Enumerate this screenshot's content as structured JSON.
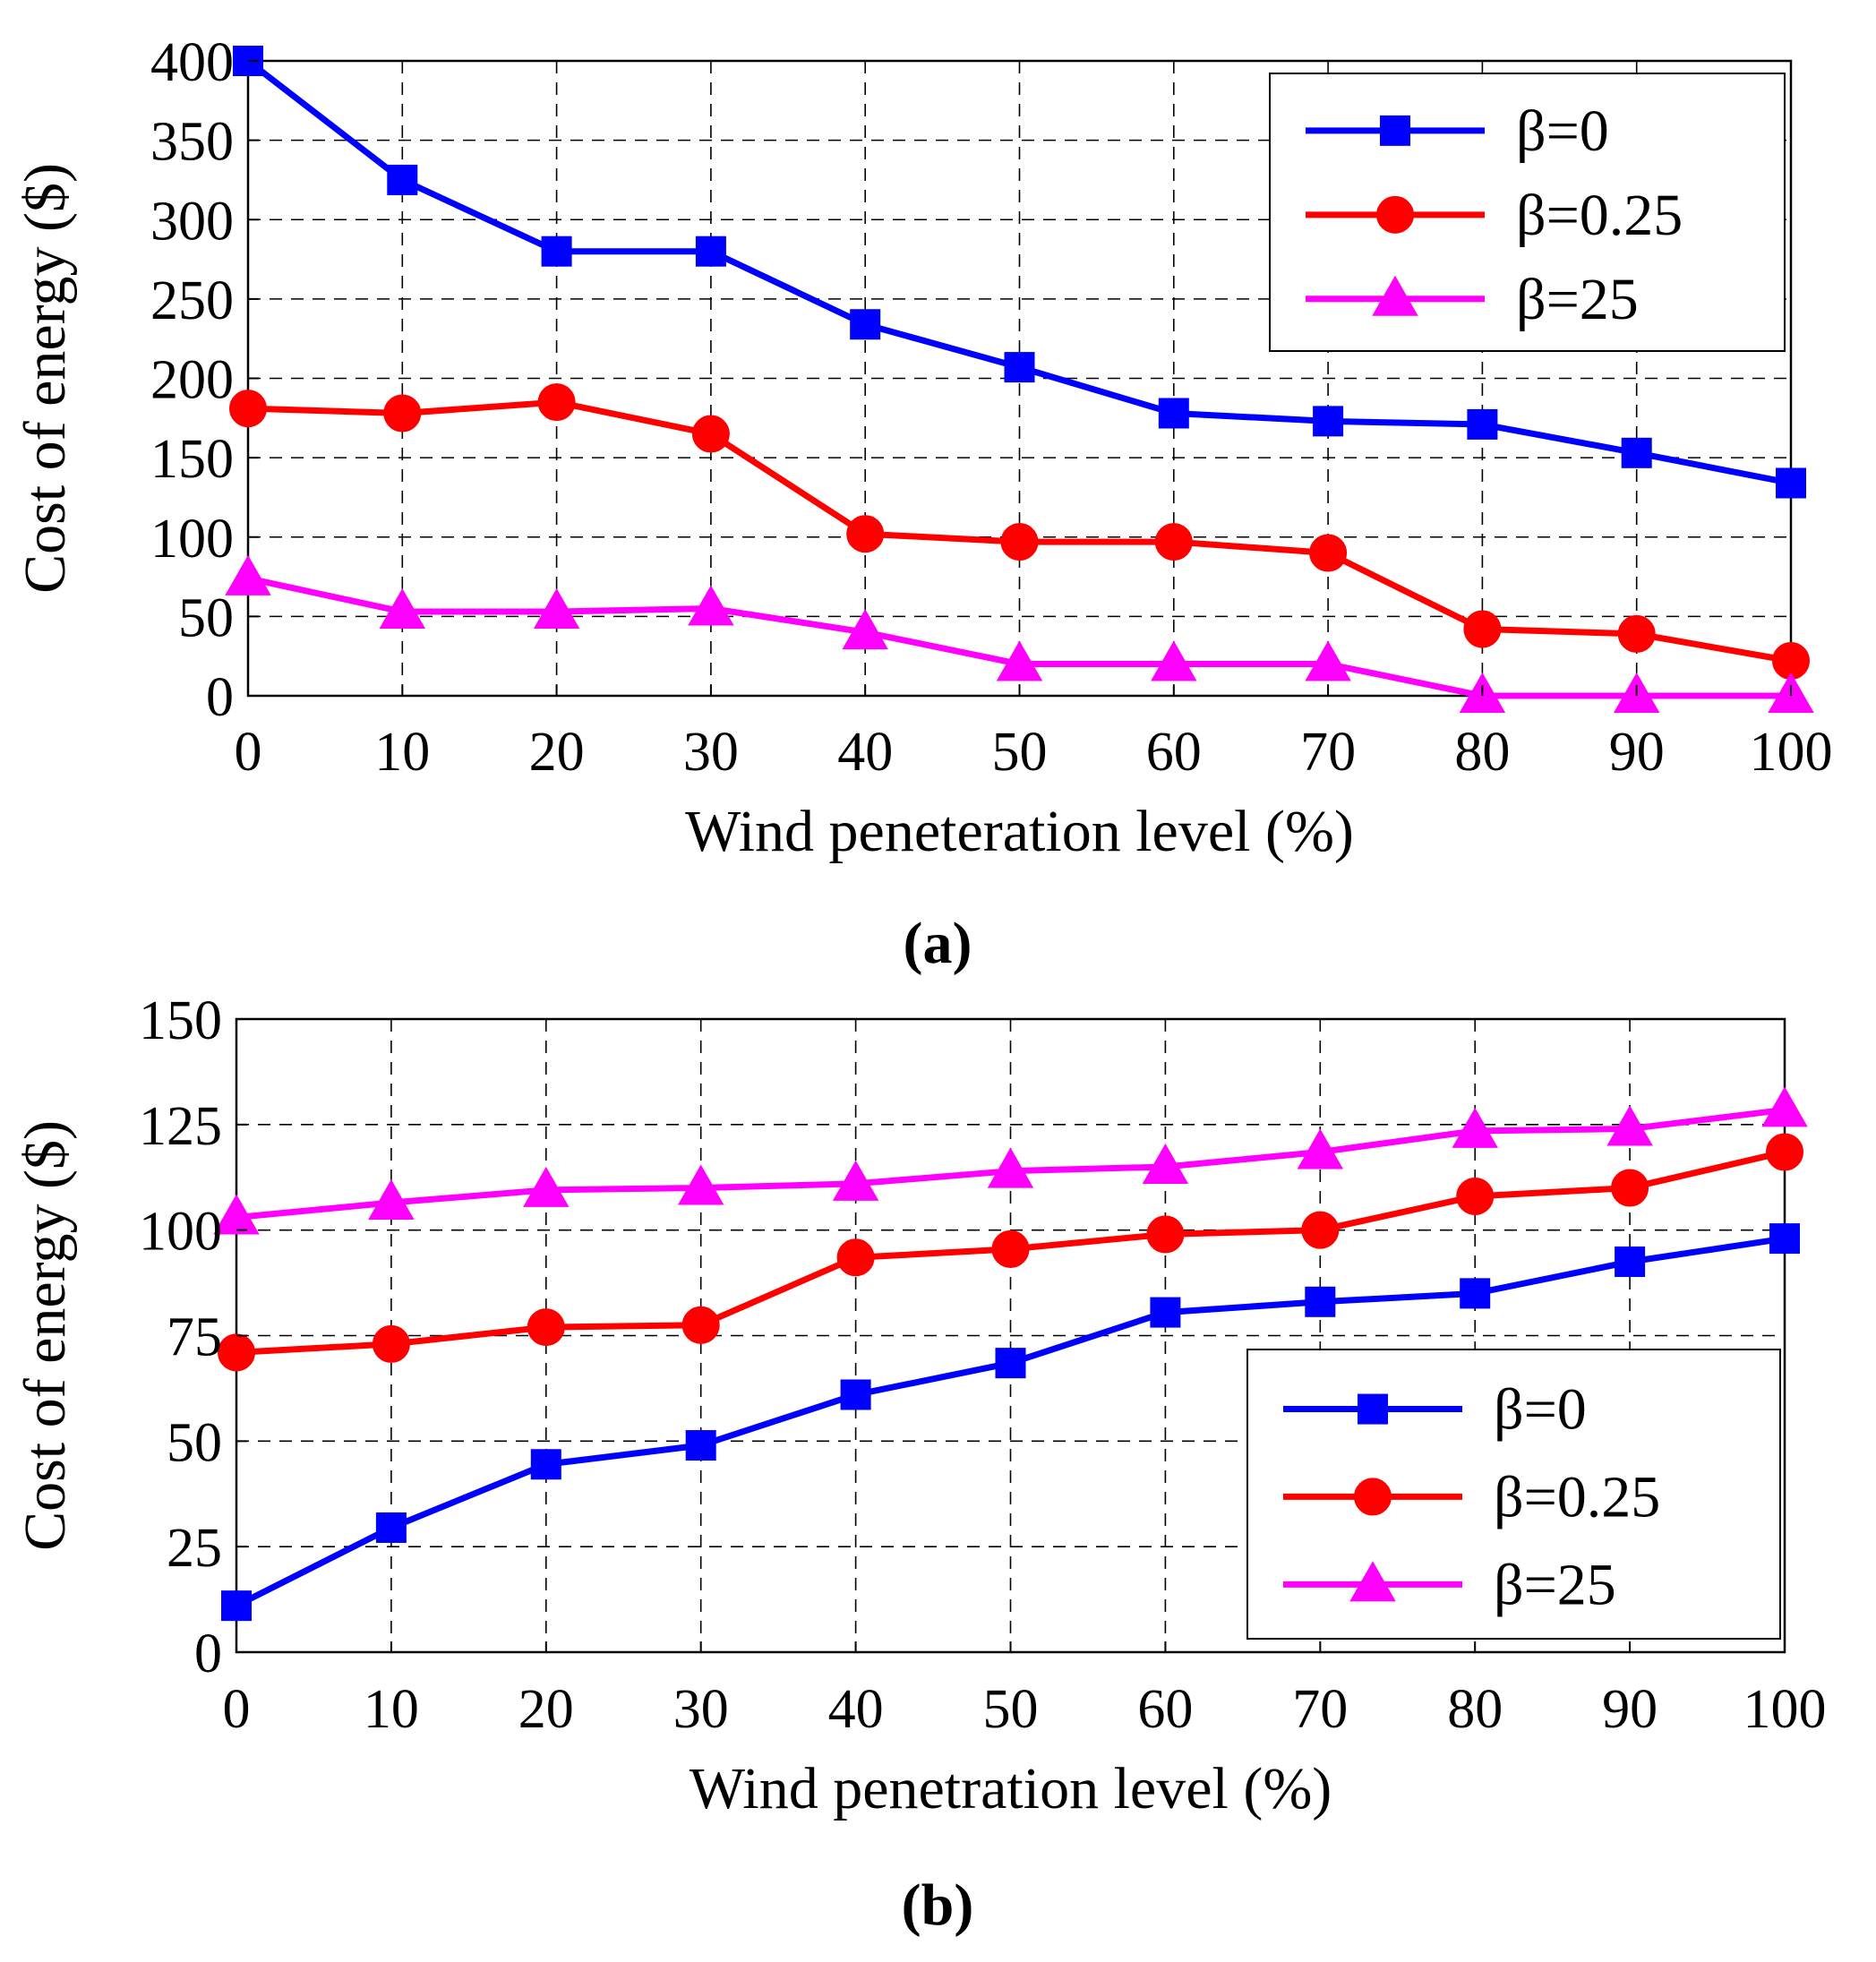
{
  "chart_data": [
    {
      "id": "a",
      "type": "line",
      "caption": "(a)",
      "xlabel": "Wind peneteration level (%)",
      "ylabel": "Cost of energy ($)",
      "x": [
        0,
        10,
        20,
        30,
        40,
        50,
        60,
        70,
        80,
        90,
        100
      ],
      "xlim": [
        0,
        100
      ],
      "ylim": [
        0,
        400
      ],
      "xticks": [
        0,
        10,
        20,
        30,
        40,
        50,
        60,
        70,
        80,
        90,
        100
      ],
      "yticks": [
        0,
        50,
        100,
        150,
        200,
        250,
        300,
        350,
        400
      ],
      "grid": true,
      "legend_position": "top-right",
      "series": [
        {
          "name": "β=0",
          "color": "#0000ff",
          "marker": "square",
          "values": [
            400,
            325,
            280,
            280,
            234,
            207,
            178,
            173,
            171,
            153,
            134
          ]
        },
        {
          "name": "β=0.25",
          "color": "#ff0000",
          "marker": "circle",
          "values": [
            181,
            178,
            185,
            165,
            102,
            97,
            97,
            90,
            42,
            39,
            22
          ]
        },
        {
          "name": "β=25",
          "color": "#ff00ff",
          "marker": "triangle",
          "values": [
            74,
            53,
            53,
            55,
            40,
            20,
            20,
            20,
            0,
            0,
            0
          ]
        }
      ]
    },
    {
      "id": "b",
      "type": "line",
      "caption": "(b)",
      "xlabel": "Wind penetration level (%)",
      "ylabel": "Cost of energy ($)",
      "x": [
        0,
        10,
        20,
        30,
        40,
        50,
        60,
        70,
        80,
        90,
        100
      ],
      "xlim": [
        0,
        100
      ],
      "ylim": [
        0,
        150
      ],
      "xticks": [
        0,
        10,
        20,
        30,
        40,
        50,
        60,
        70,
        80,
        90,
        100
      ],
      "yticks": [
        0,
        25,
        50,
        75,
        100,
        125,
        150
      ],
      "grid": true,
      "legend_position": "bottom-right",
      "series": [
        {
          "name": "β=0",
          "color": "#0000ff",
          "marker": "square",
          "values": [
            11,
            29.5,
            44.5,
            49,
            61,
            68.5,
            80.5,
            83,
            85,
            92.5,
            98
          ]
        },
        {
          "name": "β=0.25",
          "color": "#ff0000",
          "marker": "circle",
          "values": [
            71,
            73,
            77,
            77.5,
            93.5,
            95.5,
            99,
            100,
            108,
            110,
            118.5
          ]
        },
        {
          "name": "β=25",
          "color": "#ff00ff",
          "marker": "triangle",
          "values": [
            103,
            106.5,
            109.5,
            110,
            111,
            114,
            115,
            118.5,
            123.5,
            124,
            128.5
          ]
        }
      ]
    }
  ]
}
